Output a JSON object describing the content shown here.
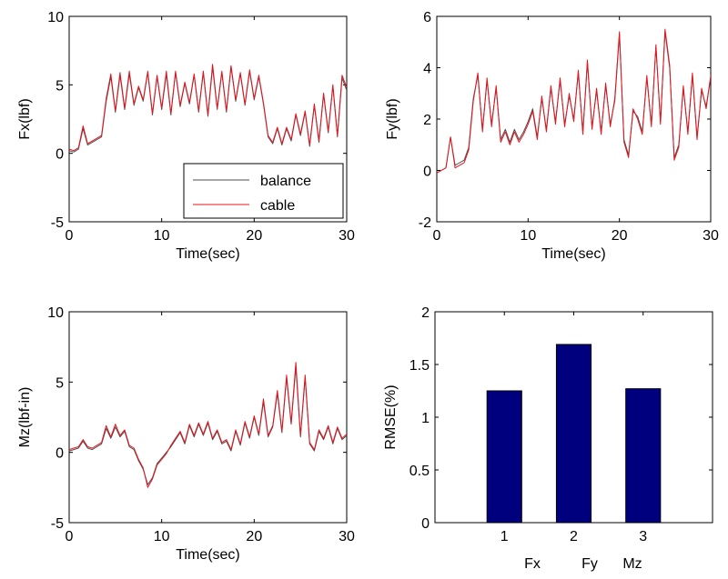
{
  "colors": {
    "balance": "#4d4d4d",
    "cable": "#e8141e",
    "bar_fill": "#00007f"
  },
  "chart_data": [
    {
      "type": "line",
      "title": "",
      "xlabel": "Time(sec)",
      "ylabel": "Fx(lbf)",
      "xlim": [
        0,
        30
      ],
      "ylim": [
        -5,
        10
      ],
      "xticks": [
        0,
        10,
        20,
        30
      ],
      "yticks": [
        -5,
        0,
        5,
        10
      ],
      "grid": false,
      "legend": {
        "placement": "inside-lower-right",
        "entries": [
          "balance",
          "cable"
        ]
      },
      "x": [
        0,
        0.5,
        1,
        1.5,
        2,
        2.5,
        3,
        3.5,
        4,
        4.5,
        5,
        5.5,
        6,
        6.5,
        7,
        7.5,
        8,
        8.5,
        9,
        9.5,
        10,
        10.5,
        11,
        11.5,
        12,
        12.5,
        13,
        13.5,
        14,
        14.5,
        15,
        15.5,
        16,
        16.5,
        17,
        17.5,
        18,
        18.5,
        19,
        19.5,
        20,
        20.5,
        21,
        21.5,
        22,
        22.5,
        23,
        23.5,
        24,
        24.5,
        25,
        25.5,
        26,
        26.5,
        27,
        27.5,
        28,
        28.5,
        29,
        29.5,
        30
      ],
      "series": [
        {
          "name": "balance",
          "color": "balance",
          "values": [
            0.2,
            0.1,
            0.3,
            1.8,
            0.6,
            0.8,
            1,
            1.2,
            3.8,
            5.6,
            3,
            5.7,
            3.2,
            5.8,
            3.5,
            4.8,
            3.8,
            5.9,
            2.8,
            5.6,
            3.2,
            5.8,
            2.8,
            5.9,
            3.4,
            5.1,
            3.6,
            5.7,
            3,
            5.9,
            2.7,
            6.3,
            3.2,
            5.9,
            3,
            6.3,
            3.8,
            5.8,
            3.5,
            6,
            3.9,
            5.6,
            3.6,
            1.2,
            0.7,
            1.8,
            0.6,
            1.8,
            0.9,
            2.8,
            1.3,
            3,
            0.5,
            3.5,
            0.8,
            4.3,
            1.5,
            4.9,
            1.2,
            5.5,
            4.6
          ]
        },
        {
          "name": "cable",
          "color": "cable",
          "values": [
            0.3,
            0.2,
            0.4,
            2,
            0.7,
            0.9,
            1.1,
            1.3,
            4,
            5.8,
            3.1,
            5.9,
            3.3,
            6,
            3.6,
            4.9,
            3.9,
            6,
            2.9,
            5.7,
            3.3,
            6,
            2.9,
            6,
            3.5,
            5.2,
            3.7,
            5.8,
            3.1,
            6,
            2.8,
            6.5,
            3.3,
            6,
            3.1,
            6.4,
            3.9,
            5.9,
            3.6,
            6.1,
            4,
            5.7,
            3.7,
            1.3,
            0.8,
            1.9,
            0.7,
            1.9,
            1,
            2.9,
            1.4,
            3.1,
            0.6,
            3.6,
            0.9,
            4.4,
            1.6,
            5,
            1.3,
            5.7,
            4.8
          ]
        }
      ]
    },
    {
      "type": "line",
      "title": "",
      "xlabel": "Time(sec)",
      "ylabel": "Fy(lbf)",
      "xlim": [
        0,
        30
      ],
      "ylim": [
        -2,
        6
      ],
      "xticks": [
        0,
        10,
        20,
        30
      ],
      "yticks": [
        -2,
        0,
        2,
        4,
        6
      ],
      "grid": false,
      "x": [
        0,
        0.5,
        1,
        1.5,
        2,
        2.5,
        3,
        3.5,
        4,
        4.5,
        5,
        5.5,
        6,
        6.5,
        7,
        7.5,
        8,
        8.5,
        9,
        9.5,
        10,
        10.5,
        11,
        11.5,
        12,
        12.5,
        13,
        13.5,
        14,
        14.5,
        15,
        15.5,
        16,
        16.5,
        17,
        17.5,
        18,
        18.5,
        19,
        19.5,
        20,
        20.5,
        21,
        21.5,
        22,
        22.5,
        23,
        23.5,
        24,
        24.5,
        25,
        25.5,
        26,
        26.5,
        27,
        27.5,
        28,
        28.5,
        29,
        29.5,
        30
      ],
      "series": [
        {
          "name": "balance",
          "color": "balance",
          "values": [
            -0.1,
            0,
            0.1,
            1.3,
            0.2,
            0.3,
            0.4,
            0.9,
            2.8,
            3.7,
            1.6,
            3.5,
            1.8,
            3.2,
            1.2,
            1.6,
            1.1,
            1.6,
            1.2,
            1.5,
            1.9,
            2.4,
            1.3,
            2.8,
            1.6,
            3.2,
            1.9,
            3.5,
            1.8,
            2.9,
            2,
            3.8,
            1.5,
            4.2,
            1.7,
            3.1,
            1.5,
            3.3,
            1.8,
            2.7,
            5.3,
            1.2,
            0.6,
            2.3,
            2.1,
            1.5,
            3.6,
            1.8,
            4.8,
            1.9,
            5.4,
            4,
            0.5,
            1,
            3.2,
            1.5,
            3.7,
            1.3,
            3.1,
            2.5,
            3.6
          ]
        },
        {
          "name": "cable",
          "color": "cable",
          "values": [
            -0.1,
            0,
            0.1,
            1.3,
            0.1,
            0.2,
            0.3,
            0.8,
            2.7,
            3.8,
            1.5,
            3.6,
            1.7,
            3.3,
            1.1,
            1.5,
            1,
            1.5,
            1.1,
            1.4,
            1.8,
            2.3,
            1.2,
            2.9,
            1.5,
            3.3,
            1.8,
            3.6,
            1.7,
            3,
            1.9,
            3.9,
            1.4,
            4.3,
            1.6,
            3.2,
            1.4,
            3.4,
            1.7,
            2.8,
            5.4,
            1.1,
            0.5,
            2.4,
            2,
            1.4,
            3.7,
            1.7,
            4.9,
            1.8,
            5.5,
            4.1,
            0.4,
            0.9,
            3.3,
            1.4,
            3.8,
            1.2,
            3.2,
            2.4,
            3.7
          ]
        }
      ]
    },
    {
      "type": "line",
      "title": "",
      "xlabel": "Time(sec)",
      "ylabel": "Mz(lbf-in)",
      "xlim": [
        0,
        30
      ],
      "ylim": [
        -5,
        10
      ],
      "xticks": [
        0,
        10,
        20,
        30
      ],
      "yticks": [
        -5,
        0,
        5,
        10
      ],
      "grid": false,
      "x": [
        0,
        0.5,
        1,
        1.5,
        2,
        2.5,
        3,
        3.5,
        4,
        4.5,
        5,
        5.5,
        6,
        6.5,
        7,
        7.5,
        8,
        8.5,
        9,
        9.5,
        10,
        10.5,
        11,
        11.5,
        12,
        12.5,
        13,
        13.5,
        14,
        14.5,
        15,
        15.5,
        16,
        16.5,
        17,
        17.5,
        18,
        18.5,
        19,
        19.5,
        20,
        20.5,
        21,
        21.5,
        22,
        22.5,
        23,
        23.5,
        24,
        24.5,
        25,
        25.5,
        26,
        26.5,
        27,
        27.5,
        28,
        28.5,
        29,
        29.5,
        30
      ],
      "series": [
        {
          "name": "balance",
          "color": "balance",
          "values": [
            0.1,
            0.2,
            0.3,
            0.8,
            0.3,
            0.2,
            0.4,
            0.6,
            1.7,
            1,
            1.8,
            1.1,
            1.5,
            0.4,
            0.2,
            -0.6,
            -1.2,
            -2.3,
            -1.8,
            -0.8,
            -0.4,
            0,
            0.4,
            0.9,
            1.4,
            0.6,
            1.9,
            1.1,
            2,
            1.2,
            2.1,
            0.9,
            1.5,
            0.6,
            0.8,
            0.1,
            1.5,
            0.5,
            2.1,
            1,
            2.5,
            1.2,
            3.6,
            1.1,
            1.8,
            4.2,
            1.4,
            5.3,
            2,
            6.1,
            1.1,
            5.3,
            0.6,
            0.1,
            1.5,
            0.9,
            1.8,
            0.6,
            1.7,
            0.9,
            1.2
          ]
        },
        {
          "name": "cable",
          "color": "cable",
          "values": [
            0.2,
            0.3,
            0.4,
            0.9,
            0.4,
            0.3,
            0.5,
            0.7,
            1.9,
            1.1,
            2,
            1.2,
            1.6,
            0.5,
            0.3,
            -0.5,
            -1.1,
            -2.5,
            -1.9,
            -0.9,
            -0.5,
            -0.1,
            0.5,
            1,
            1.5,
            0.7,
            2,
            1.2,
            2.1,
            1.3,
            2.2,
            1,
            1.6,
            0.7,
            0.9,
            0.2,
            1.6,
            0.6,
            2.2,
            1.1,
            2.6,
            1.3,
            3.8,
            1.2,
            1.9,
            4.4,
            1.5,
            5.5,
            2.1,
            6.4,
            1.2,
            5.5,
            0.7,
            0.2,
            1.6,
            1,
            1.9,
            0.7,
            1.8,
            1,
            1.3
          ]
        }
      ]
    },
    {
      "type": "bar",
      "title": "",
      "xlabel": "",
      "ylabel": "RMSE(%)",
      "xlim": [
        0,
        4
      ],
      "ylim": [
        0,
        2
      ],
      "yticks": [
        0,
        0.5,
        1,
        1.5,
        2
      ],
      "grid": false,
      "categories": [
        "1",
        "2",
        "3"
      ],
      "category_names": [
        "Fx",
        "Fy",
        "Mz"
      ],
      "values": [
        1.25,
        1.69,
        1.27
      ]
    }
  ]
}
